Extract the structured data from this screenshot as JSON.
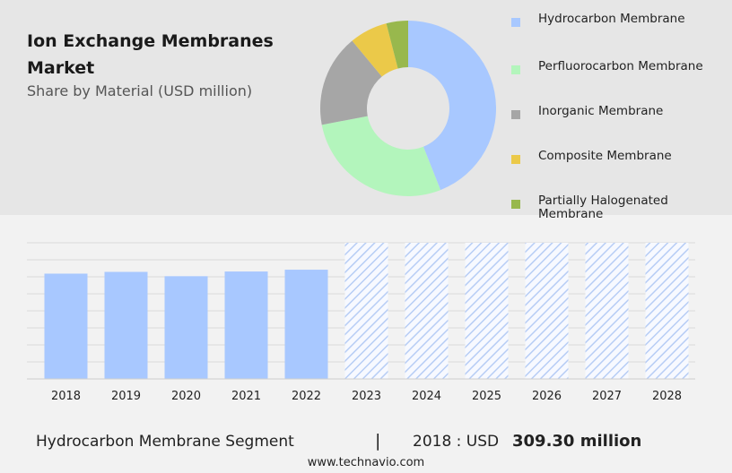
{
  "header": {
    "title": "Ion Exchange Membranes Market",
    "subtitle": "Share by Material (USD million)"
  },
  "footer": {
    "segment": "Hydrocarbon Membrane Segment",
    "divider": "|",
    "year_label": "2018 : USD",
    "value_label": "309.30 million",
    "site": "www.technavio.com"
  },
  "chart_data": [
    {
      "type": "pie",
      "title": "",
      "labels": [
        "Hydrocarbon Membrane",
        "Perfluorocarbon Membrane",
        "Inorganic Membrane",
        "Composite Membrane",
        "Partially Halogenated Membrane"
      ],
      "values": [
        44,
        28,
        17,
        7,
        4
      ],
      "colors": [
        "#a8c8ff",
        "#b3f5bc",
        "#a6a6a6",
        "#ebc949",
        "#98b84d"
      ],
      "legend_position": "right",
      "donut": true
    },
    {
      "type": "bar",
      "title": "",
      "categories": [
        "2018",
        "2019",
        "2020",
        "2021",
        "2022",
        "2023",
        "2024",
        "2025",
        "2026",
        "2027",
        "2028"
      ],
      "values": [
        309.3,
        314.5,
        301.8,
        315.6,
        320.9,
        null,
        null,
        null,
        null,
        null,
        null
      ],
      "forecast_categories": [
        "2023",
        "2024",
        "2025",
        "2026",
        "2027",
        "2028"
      ],
      "forecast_style": "hatched",
      "bar_color": "#a8c8ff",
      "xlabel": "",
      "ylabel": "",
      "ylim": [
        0,
        400
      ],
      "grid": true
    }
  ]
}
